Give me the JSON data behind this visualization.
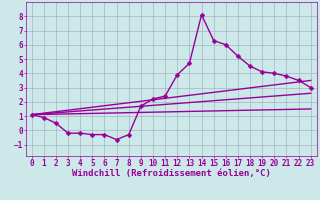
{
  "background_color": "#cce8e8",
  "grid_color": "#99aabb",
  "line_color": "#990099",
  "marker": "D",
  "markersize": 2.5,
  "linewidth": 1.0,
  "xlim": [
    -0.5,
    23.5
  ],
  "ylim": [
    -1.8,
    9.0
  ],
  "xticks": [
    0,
    1,
    2,
    3,
    4,
    5,
    6,
    7,
    8,
    9,
    10,
    11,
    12,
    13,
    14,
    15,
    16,
    17,
    18,
    19,
    20,
    21,
    22,
    23
  ],
  "yticks": [
    -1,
    0,
    1,
    2,
    3,
    4,
    5,
    6,
    7,
    8
  ],
  "xlabel": "Windchill (Refroidissement éolien,°C)",
  "xlabel_fontsize": 6.5,
  "tick_fontsize": 5.5,
  "series1_x": [
    0,
    1,
    2,
    3,
    4,
    5,
    6,
    7,
    8,
    9,
    10,
    11,
    12,
    13,
    14,
    15,
    16,
    17,
    18,
    19,
    20,
    21,
    22,
    23
  ],
  "series1_y": [
    1.1,
    0.9,
    0.5,
    -0.2,
    -0.2,
    -0.3,
    -0.3,
    -0.65,
    -0.3,
    1.7,
    2.2,
    2.4,
    3.9,
    4.7,
    8.1,
    6.3,
    6.0,
    5.2,
    4.5,
    4.1,
    4.0,
    3.8,
    3.5,
    3.0
  ],
  "series2_x": [
    0,
    23
  ],
  "series2_y": [
    1.1,
    1.5
  ],
  "series3_x": [
    0,
    23
  ],
  "series3_y": [
    1.1,
    2.6
  ],
  "series4_x": [
    0,
    23
  ],
  "series4_y": [
    1.1,
    3.5
  ]
}
